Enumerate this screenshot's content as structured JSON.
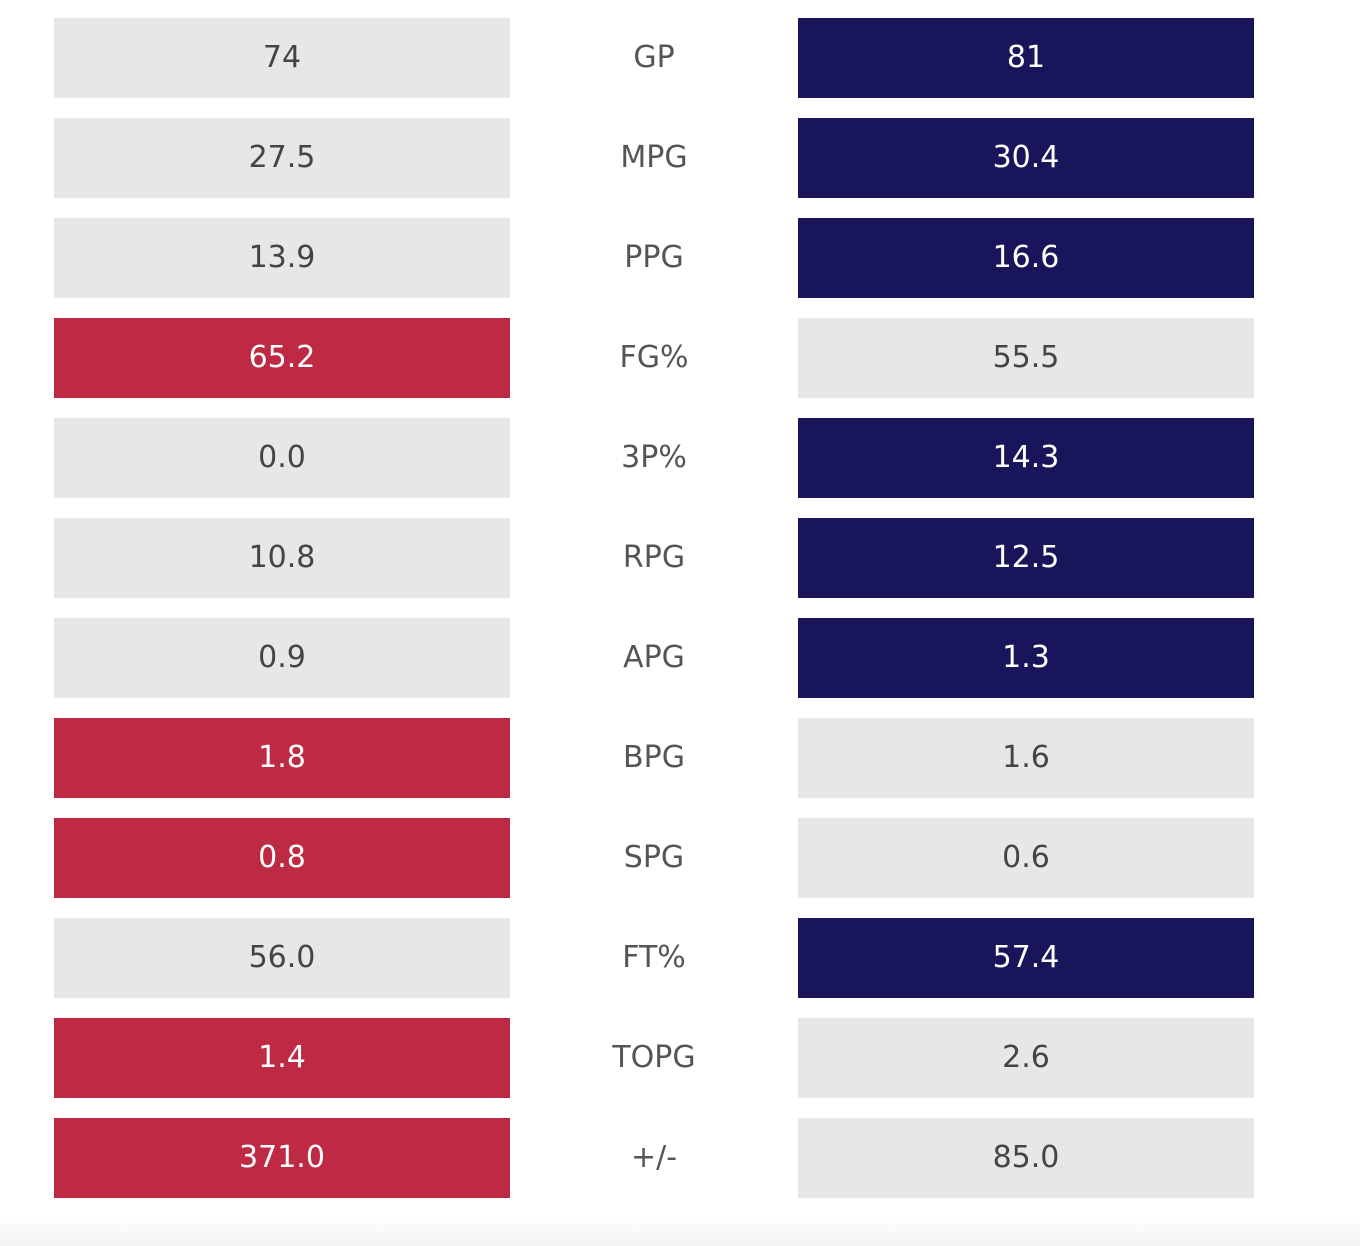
{
  "colors": {
    "neutral_bg": "#e7e7e7",
    "neutral_text": "#444444",
    "left_highlight": "#be2a43",
    "right_highlight": "#18155a",
    "highlight_text": "#ffffff",
    "label_text": "#555555"
  },
  "rows": [
    {
      "stat": "GP",
      "left": "74",
      "right": "81",
      "winner": "right"
    },
    {
      "stat": "MPG",
      "left": "27.5",
      "right": "30.4",
      "winner": "right"
    },
    {
      "stat": "PPG",
      "left": "13.9",
      "right": "16.6",
      "winner": "right"
    },
    {
      "stat": "FG%",
      "left": "65.2",
      "right": "55.5",
      "winner": "left"
    },
    {
      "stat": "3P%",
      "left": "0.0",
      "right": "14.3",
      "winner": "right"
    },
    {
      "stat": "RPG",
      "left": "10.8",
      "right": "12.5",
      "winner": "right"
    },
    {
      "stat": "APG",
      "left": "0.9",
      "right": "1.3",
      "winner": "right"
    },
    {
      "stat": "BPG",
      "left": "1.8",
      "right": "1.6",
      "winner": "left"
    },
    {
      "stat": "SPG",
      "left": "0.8",
      "right": "0.6",
      "winner": "left"
    },
    {
      "stat": "FT%",
      "left": "56.0",
      "right": "57.4",
      "winner": "right"
    },
    {
      "stat": "TOPG",
      "left": "1.4",
      "right": "2.6",
      "winner": "left"
    },
    {
      "stat": "+/-",
      "left": "371.0",
      "right": "85.0",
      "winner": "left"
    }
  ]
}
